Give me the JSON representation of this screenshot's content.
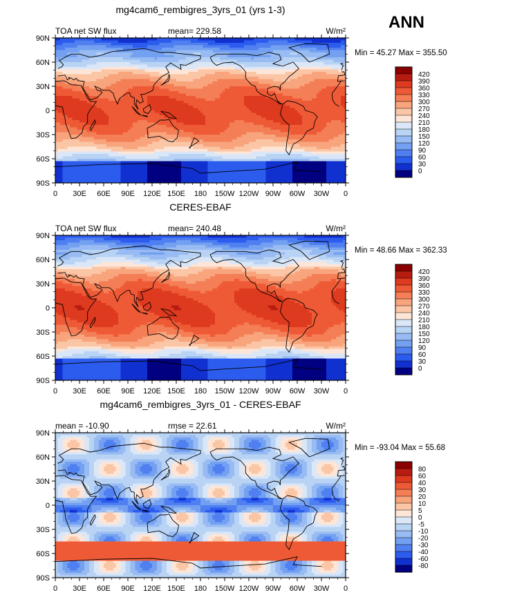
{
  "season": "ANN",
  "tick_labels": {
    "lat": [
      "90N",
      "60N",
      "30N",
      "0",
      "30S",
      "60S",
      "90S"
    ],
    "lon": [
      "0",
      "30E",
      "60E",
      "90E",
      "120E",
      "150E",
      "180",
      "150W",
      "120W",
      "90W",
      "60W",
      "30W",
      "0"
    ]
  },
  "chart_data": [
    {
      "type": "heatmap",
      "title": "mg4cam6_rembigres_3yrs_01 (yrs 1-3)",
      "left_label": "TOA net SW flux",
      "stat_label": "mean=",
      "stat_value": "229.58",
      "units": "W/m²",
      "min_label": "Min =",
      "min": "45.27",
      "max_label": "Max =",
      "max": "355.50",
      "colorbar": {
        "levels": [
          "420",
          "390",
          "360",
          "330",
          "300",
          "270",
          "240",
          "210",
          "180",
          "150",
          "120",
          "90",
          "60",
          "30",
          "0"
        ],
        "colors": [
          "#8b0000",
          "#b81c10",
          "#dd3a1f",
          "#ef5a36",
          "#f47e55",
          "#f8a47d",
          "#fbc6a6",
          "#fde6d8",
          "#dbe7f7",
          "#b9d3f4",
          "#97bbf2",
          "#73a0f0",
          "#4f7ff0",
          "#2c5cee",
          "#1130d0",
          "#000080"
        ]
      }
    },
    {
      "type": "heatmap",
      "title": "CERES-EBAF",
      "left_label": "TOA net SW flux",
      "stat_label": "mean=",
      "stat_value": "240.48",
      "units": "W/m²",
      "min_label": "Min =",
      "min": "48.66",
      "max_label": "Max =",
      "max": "362.33",
      "colorbar": {
        "levels": [
          "420",
          "390",
          "360",
          "330",
          "300",
          "270",
          "240",
          "210",
          "180",
          "150",
          "120",
          "90",
          "60",
          "30",
          "0"
        ],
        "colors": [
          "#8b0000",
          "#b81c10",
          "#dd3a1f",
          "#ef5a36",
          "#f47e55",
          "#f8a47d",
          "#fbc6a6",
          "#fde6d8",
          "#dbe7f7",
          "#b9d3f4",
          "#97bbf2",
          "#73a0f0",
          "#4f7ff0",
          "#2c5cee",
          "#1130d0",
          "#000080"
        ]
      }
    },
    {
      "type": "heatmap",
      "title": "mg4cam6_rembigres_3yrs_01 - CERES-EBAF",
      "left_label": "mean = -10.90",
      "stat_label": "rmse =",
      "stat_value": "22.61",
      "units": "W/m²",
      "min_label": "Min =",
      "min": "-93.04",
      "max_label": "Max =",
      "max": "55.68",
      "colorbar": {
        "levels": [
          "80",
          "60",
          "40",
          "30",
          "20",
          "10",
          "5",
          "0",
          "-5",
          "-10",
          "-20",
          "-30",
          "-40",
          "-60",
          "-80"
        ],
        "colors": [
          "#8b0000",
          "#b81c10",
          "#dd3a1f",
          "#ef5a36",
          "#f47e55",
          "#f8a47d",
          "#fbc6a6",
          "#fde6d8",
          "#dbe7f7",
          "#b9d3f4",
          "#97bbf2",
          "#73a0f0",
          "#4f7ff0",
          "#2c5cee",
          "#1130d0",
          "#000080"
        ]
      }
    }
  ]
}
